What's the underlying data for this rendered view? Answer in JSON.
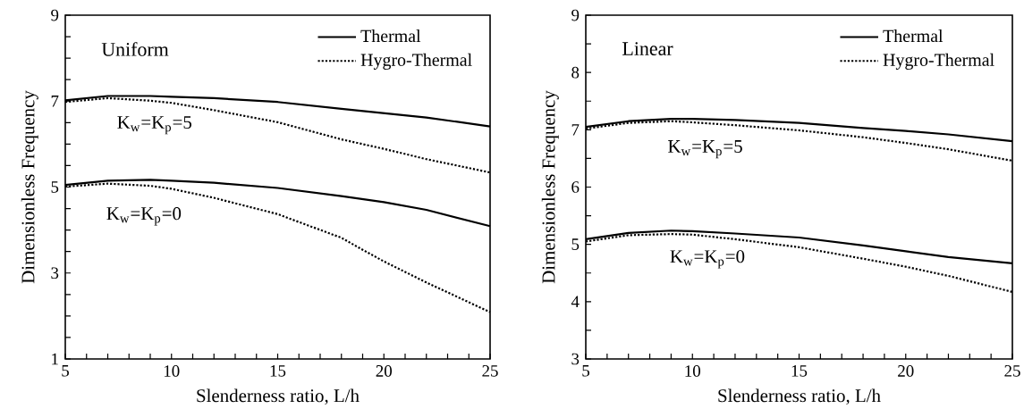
{
  "chart_data": [
    {
      "type": "line",
      "xlabel": "Slenderness ratio, L/h",
      "ylabel": "Dimensionless Frequency",
      "legend": "top right",
      "grid": false,
      "xlim": [
        5,
        25
      ],
      "ylim": [
        1,
        9
      ],
      "xticks": [
        5,
        {
          "value": 6,
          "label": null
        },
        {
          "value": 7,
          "label": null
        },
        {
          "value": 8,
          "label": null
        },
        {
          "value": 9,
          "label": null
        },
        10,
        {
          "value": 11,
          "label": null
        },
        {
          "value": 12,
          "label": null
        },
        {
          "value": 13,
          "label": null
        },
        {
          "value": 14,
          "label": null
        },
        15,
        {
          "value": 16,
          "label": null
        },
        {
          "value": 17,
          "label": null
        },
        {
          "value": 18,
          "label": null
        },
        {
          "value": 19,
          "label": null
        },
        20,
        {
          "value": 21,
          "label": null
        },
        {
          "value": 22,
          "label": null
        },
        {
          "value": 23,
          "label": null
        },
        {
          "value": 24,
          "label": null
        },
        25
      ],
      "yticks": [
        1,
        {
          "value": 1.5,
          "label": null
        },
        {
          "value": 2,
          "label": null
        },
        {
          "value": 2.5,
          "label": null
        },
        3,
        {
          "value": 3.5,
          "label": null
        },
        {
          "value": 4,
          "label": null
        },
        {
          "value": 4.5,
          "label": null
        },
        5,
        {
          "value": 5.5,
          "label": null
        },
        {
          "value": 6,
          "label": null
        },
        {
          "value": 6.5,
          "label": null
        },
        7,
        {
          "value": 7.5,
          "label": null
        },
        {
          "value": 8,
          "label": null
        },
        {
          "value": 8.5,
          "label": null
        },
        9
      ],
      "x": [
        5,
        7,
        9,
        10,
        12,
        15,
        18,
        20,
        22,
        25
      ],
      "series": [
        {
          "name": "Thermal",
          "color": "#000000",
          "line_style": "solid",
          "values": [
            7.02,
            7.12,
            7.12,
            7.1,
            7.07,
            6.98,
            6.82,
            6.72,
            6.62,
            6.41
          ]
        },
        {
          "name": "Hygro-Thermal",
          "color": "#000000",
          "line_style": "dotted",
          "values": [
            6.98,
            7.07,
            7.01,
            6.96,
            6.79,
            6.51,
            6.11,
            5.89,
            5.65,
            5.34
          ]
        },
        {
          "color": "#000000",
          "line_style": "solid",
          "values": [
            5.05,
            5.15,
            5.17,
            5.15,
            5.1,
            4.98,
            4.79,
            4.65,
            4.47,
            4.09
          ]
        },
        {
          "color": "#000000",
          "line_style": "dotted",
          "x": [
            5,
            7,
            9,
            10,
            12,
            15,
            18,
            19,
            20,
            22,
            25
          ],
          "values": [
            5.01,
            5.08,
            5.03,
            4.96,
            4.75,
            4.37,
            3.82,
            3.54,
            3.27,
            2.78,
            2.09
          ]
        }
      ],
      "annotations": [
        "Uniform",
        "K$_{w}$=K$_{p}$=5",
        "K$_{w}$=K$_{p}$=0"
      ]
    },
    {
      "type": "line",
      "xlabel": "Slenderness ratio, L/h",
      "ylabel": "Dimensionless Frequency",
      "legend": "top right",
      "grid": false,
      "xlim": [
        5,
        25
      ],
      "ylim": [
        3,
        9
      ],
      "xticks": [
        5,
        {
          "value": 6,
          "label": null
        },
        {
          "value": 7,
          "label": null
        },
        {
          "value": 8,
          "label": null
        },
        {
          "value": 9,
          "label": null
        },
        10,
        {
          "value": 11,
          "label": null
        },
        {
          "value": 12,
          "label": null
        },
        {
          "value": 13,
          "label": null
        },
        {
          "value": 14,
          "label": null
        },
        15,
        {
          "value": 16,
          "label": null
        },
        {
          "value": 17,
          "label": null
        },
        {
          "value": 18,
          "label": null
        },
        {
          "value": 19,
          "label": null
        },
        20,
        {
          "value": 21,
          "label": null
        },
        {
          "value": 22,
          "label": null
        },
        {
          "value": 23,
          "label": null
        },
        {
          "value": 24,
          "label": null
        },
        25
      ],
      "yticks": [
        3,
        {
          "value": 3.5,
          "label": null
        },
        4,
        {
          "value": 4.5,
          "label": null
        },
        5,
        {
          "value": 5.5,
          "label": null
        },
        6,
        {
          "value": 6.5,
          "label": null
        },
        7,
        {
          "value": 7.5,
          "label": null
        },
        8,
        {
          "value": 8.5,
          "label": null
        },
        9
      ],
      "x": [
        5,
        7,
        9,
        10,
        12,
        15,
        18,
        20,
        22,
        25
      ],
      "series": [
        {
          "name": "Thermal",
          "color": "#000000",
          "line_style": "solid",
          "values": [
            7.05,
            7.15,
            7.19,
            7.19,
            7.17,
            7.12,
            7.03,
            6.98,
            6.92,
            6.8
          ]
        },
        {
          "name": "Hygro-Thermal",
          "color": "#000000",
          "line_style": "dotted",
          "values": [
            7.02,
            7.12,
            7.15,
            7.13,
            7.08,
            6.99,
            6.87,
            6.77,
            6.66,
            6.46
          ]
        },
        {
          "color": "#000000",
          "line_style": "solid",
          "values": [
            5.09,
            5.2,
            5.24,
            5.23,
            5.19,
            5.12,
            4.98,
            4.88,
            4.78,
            4.67
          ]
        },
        {
          "color": "#000000",
          "line_style": "dotted",
          "values": [
            5.05,
            5.16,
            5.18,
            5.17,
            5.09,
            4.95,
            4.75,
            4.61,
            4.45,
            4.17
          ]
        }
      ],
      "annotations": [
        "Linear",
        "K$_{w}$=K$_{p}$=5",
        "K$_{w}$=K$_{p}$=0"
      ]
    }
  ]
}
